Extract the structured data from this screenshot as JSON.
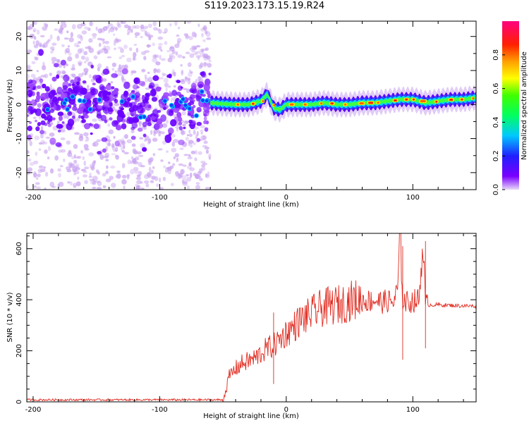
{
  "title": "S119.2023.173.15.19.R24",
  "colors": {
    "snr_line": "#e02a1f",
    "axis": "#000000",
    "scatter_low": "#c8a2f0",
    "scatter_high": "#6a00ff"
  },
  "chart_data": [
    {
      "type": "heatmap",
      "xlabel": "Height of straight line (km)",
      "ylabel": "Frequency (Hz)",
      "xlim": [
        -205,
        150
      ],
      "ylim": [
        -25,
        24.5
      ],
      "xticks": [
        -200,
        -100,
        0,
        100
      ],
      "yticks": [
        -20,
        -10,
        0,
        10,
        20
      ],
      "grid": false,
      "colorbar": {
        "label": "Normalized spectral amplitude",
        "range": [
          0,
          1
        ],
        "ticks": [
          "0.0",
          "0.2",
          "0.4",
          "0.6",
          "0.8"
        ],
        "colormap": "gist_rainbow (purple→blue→cyan→green→yellow→orange→red→magenta)"
      },
      "trace": {
        "description": "narrow signal band near 0 Hz from -60 km to 150 km; broad noise scatter from -205 km to -60 km",
        "x": [
          -60,
          -50,
          -40,
          -30,
          -20,
          -15,
          -10,
          -5,
          0,
          10,
          20,
          30,
          40,
          50,
          60,
          70,
          80,
          90,
          100,
          110,
          120,
          130,
          140,
          150
        ],
        "freq": [
          0.5,
          0.2,
          0.0,
          0.0,
          1.0,
          3.0,
          -1.0,
          -1.5,
          0.0,
          0.0,
          0.0,
          0.5,
          0.0,
          0.0,
          0.5,
          0.5,
          1.0,
          1.5,
          1.5,
          0.5,
          1.0,
          1.5,
          1.5,
          2.0
        ]
      }
    },
    {
      "type": "line",
      "xlabel": "Height of straight line (km)",
      "ylabel": "SNR (10 * v/v)",
      "xlim": [
        -205,
        150
      ],
      "ylim": [
        0,
        660
      ],
      "xticks": [
        -200,
        -100,
        0,
        100
      ],
      "yticks": [
        0,
        200,
        400,
        600
      ],
      "grid": false,
      "series": [
        {
          "x": [
            -205,
            -150,
            -100,
            -60,
            -50,
            -48,
            -45,
            -40,
            -35,
            -30,
            -25,
            -20,
            -15,
            -10,
            -5,
            0,
            5,
            10,
            15,
            20,
            25,
            30,
            35,
            40,
            45,
            50,
            55,
            60,
            65,
            70,
            75,
            80,
            85,
            88,
            90,
            92,
            95,
            100,
            105,
            108,
            110,
            115,
            120,
            130,
            140,
            150
          ],
          "values": [
            8,
            8,
            8,
            8,
            8,
            40,
            100,
            130,
            150,
            160,
            170,
            190,
            210,
            220,
            245,
            270,
            290,
            315,
            330,
            345,
            360,
            370,
            375,
            380,
            385,
            395,
            400,
            398,
            395,
            400,
            390,
            395,
            390,
            440,
            660,
            400,
            390,
            395,
            400,
            630,
            380,
            380,
            380,
            378,
            376,
            375
          ]
        }
      ],
      "spikes": [
        {
          "x": 92,
          "values": [
            165,
            610
          ]
        },
        {
          "x": 110,
          "values": [
            210,
            630
          ]
        },
        {
          "x": -10,
          "values": [
            70,
            350
          ]
        }
      ]
    }
  ]
}
